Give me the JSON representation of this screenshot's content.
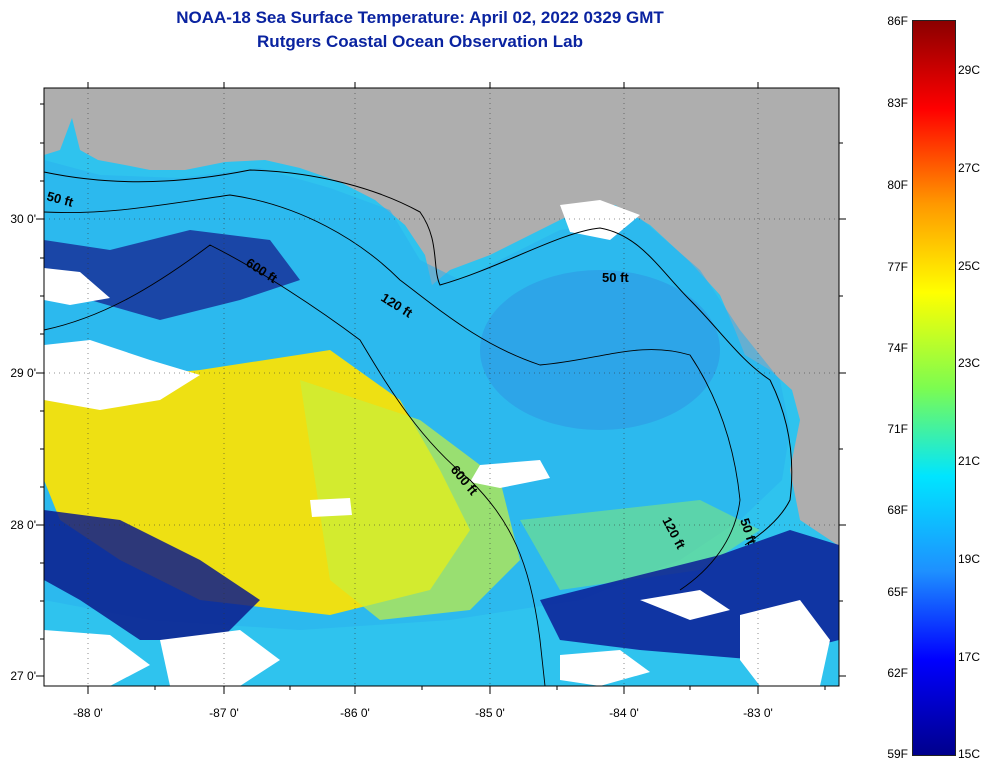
{
  "title": {
    "line1": "NOAA-18 Sea Surface Temperature:  April 02, 2022 0329 GMT",
    "line2": "Rutgers Coastal Ocean Observation Lab"
  },
  "map": {
    "lat_labels": [
      "30 0'",
      "29 0'",
      "28 0'",
      "27 0'"
    ],
    "lon_labels": [
      "-88 0'",
      "-87 0'",
      "-86 0'",
      "-85 0'",
      "-84 0'",
      "-83 0'"
    ],
    "contour_labels": [
      "50 ft",
      "600 ft",
      "120 ft",
      "50 ft",
      "600 ft",
      "120 ft",
      "50 ft"
    ],
    "colors": {
      "land": "#aeaeae",
      "cloud": "#ffffff",
      "contour": "#000000"
    }
  },
  "colorbar": {
    "f_labels": [
      "86F",
      "83F",
      "80F",
      "77F",
      "74F",
      "71F",
      "68F",
      "65F",
      "62F",
      "59F"
    ],
    "c_labels": [
      "29C",
      "27C",
      "25C",
      "23C",
      "21C",
      "19C",
      "17C",
      "15C"
    ],
    "colors": [
      "#00008c",
      "#0000ff",
      "#1e90ff",
      "#00e5ff",
      "#7cfc50",
      "#ffff00",
      "#ff9900",
      "#ff0000",
      "#8b0000"
    ]
  }
}
